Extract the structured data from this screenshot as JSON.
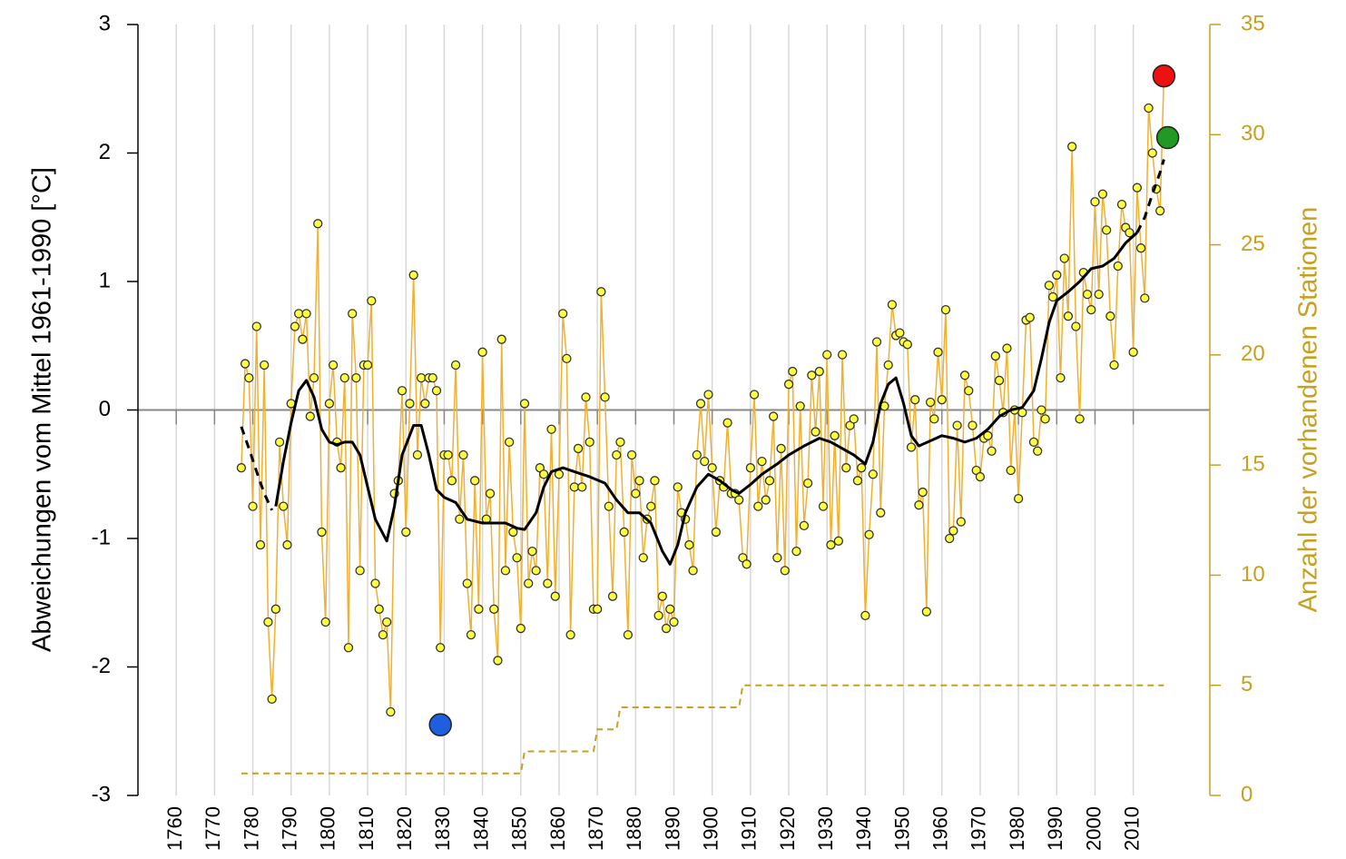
{
  "chart_data": {
    "type": "line",
    "ylabel": "Abweichungen vom Mittel 1961-1990 [°C]",
    "y2label": "Anzahl der vorhandenen Stationen",
    "xlim": [
      1750,
      2030
    ],
    "xticks": [
      1760,
      1770,
      1780,
      1790,
      1800,
      1810,
      1820,
      1830,
      1840,
      1850,
      1860,
      1870,
      1880,
      1890,
      1900,
      1910,
      1920,
      1930,
      1940,
      1950,
      1960,
      1970,
      1980,
      1990,
      2000,
      2010
    ],
    "ylim": [
      -3,
      3
    ],
    "yticks": [
      -3,
      -2,
      -1,
      0,
      1,
      2,
      3
    ],
    "y2lim": [
      0,
      35
    ],
    "y2ticks": [
      0,
      5,
      10,
      15,
      20,
      25,
      30,
      35
    ],
    "y2color": "#c8a020",
    "grid": "x",
    "zero_line": true,
    "series": [
      {
        "axis": "y2",
        "color": "#c8a020",
        "linestyle": "dashed",
        "linewidth": 2,
        "x": [
          1777,
          1850,
          1851,
          1869,
          1870,
          1875,
          1876,
          1907,
          1908,
          2018
        ],
        "values": [
          1,
          1,
          2,
          2,
          3,
          3,
          4,
          4,
          5,
          5
        ]
      },
      {
        "color": "#f0b030",
        "linestyle": "solid",
        "linewidth": 1.5,
        "marker": true,
        "marker_color": "#ffff40",
        "x": [
          1777,
          1778,
          1779,
          1780,
          1781,
          1782,
          1783,
          1784,
          1785,
          1786,
          1787,
          1788,
          1789,
          1790,
          1791,
          1792,
          1793,
          1794,
          1795,
          1796,
          1797,
          1798,
          1799,
          1800,
          1801,
          1802,
          1803,
          1804,
          1805,
          1806,
          1807,
          1808,
          1809,
          1810,
          1811,
          1812,
          1813,
          1814,
          1815,
          1816,
          1817,
          1818,
          1819,
          1820,
          1821,
          1822,
          1823,
          1824,
          1825,
          1826,
          1827,
          1828,
          1829,
          1830,
          1831,
          1832,
          1833,
          1834,
          1835,
          1836,
          1837,
          1838,
          1839,
          1840,
          1841,
          1842,
          1843,
          1844,
          1845,
          1846,
          1847,
          1848,
          1849,
          1850,
          1851,
          1852,
          1853,
          1854,
          1855,
          1856,
          1857,
          1858,
          1859,
          1860,
          1861,
          1862,
          1863,
          1864,
          1865,
          1866,
          1867,
          1868,
          1869,
          1870,
          1871,
          1872,
          1873,
          1874,
          1875,
          1876,
          1877,
          1878,
          1879,
          1880,
          1881,
          1882,
          1883,
          1884,
          1885,
          1886,
          1887,
          1888,
          1889,
          1890,
          1891,
          1892,
          1893,
          1894,
          1895,
          1896,
          1897,
          1898,
          1899,
          1900,
          1901,
          1902,
          1903,
          1904,
          1905,
          1906,
          1907,
          1908,
          1909,
          1910,
          1911,
          1912,
          1913,
          1914,
          1915,
          1916,
          1917,
          1918,
          1919,
          1920,
          1921,
          1922,
          1923,
          1924,
          1925,
          1926,
          1927,
          1928,
          1929,
          1930,
          1931,
          1932,
          1933,
          1934,
          1935,
          1936,
          1937,
          1938,
          1939,
          1940,
          1941,
          1942,
          1943,
          1944,
          1945,
          1946,
          1947,
          1948,
          1949,
          1950,
          1951,
          1952,
          1953,
          1954,
          1955,
          1956,
          1957,
          1958,
          1959,
          1960,
          1961,
          1962,
          1963,
          1964,
          1965,
          1966,
          1967,
          1968,
          1969,
          1970,
          1971,
          1972,
          1973,
          1974,
          1975,
          1976,
          1977,
          1978,
          1979,
          1980,
          1981,
          1982,
          1983,
          1984,
          1985,
          1986,
          1987,
          1988,
          1989,
          1990,
          1991,
          1992,
          1993,
          1994,
          1995,
          1996,
          1997,
          1998,
          1999,
          2000,
          2001,
          2002,
          2003,
          2004,
          2005,
          2006,
          2007,
          2008,
          2009,
          2010,
          2011,
          2012,
          2013,
          2014,
          2015,
          2016,
          2017,
          2018
        ],
        "values": [
          -0.45,
          0.36,
          0.25,
          -0.75,
          0.65,
          -1.05,
          0.35,
          -1.65,
          -2.25,
          -1.55,
          -0.25,
          -0.75,
          -1.05,
          0.05,
          0.65,
          0.75,
          0.55,
          0.75,
          -0.05,
          0.25,
          1.45,
          -0.95,
          -1.65,
          0.05,
          0.35,
          -0.25,
          -0.45,
          0.25,
          -1.85,
          0.75,
          0.25,
          -1.25,
          0.35,
          0.35,
          0.85,
          -1.35,
          -1.55,
          -1.75,
          -1.65,
          -2.35,
          -0.65,
          -0.55,
          0.15,
          -0.95,
          0.05,
          1.05,
          -0.35,
          0.25,
          0.05,
          0.25,
          0.25,
          0.15,
          -1.85,
          -0.35,
          -0.35,
          -0.55,
          0.35,
          -0.85,
          -0.35,
          -1.35,
          -1.75,
          -0.55,
          -1.55,
          0.45,
          -0.85,
          -0.65,
          -1.55,
          -1.95,
          0.55,
          -1.25,
          -0.25,
          -0.95,
          -1.15,
          -1.7,
          0.05,
          -1.35,
          -1.1,
          -1.25,
          -0.45,
          -0.5,
          -1.35,
          -0.15,
          -1.45,
          -0.5,
          0.75,
          0.4,
          -1.75,
          -0.6,
          -0.3,
          -0.6,
          0.1,
          -0.25,
          -1.55,
          -1.55,
          0.92,
          0.1,
          -0.75,
          -1.45,
          -0.35,
          -0.25,
          -0.95,
          -1.75,
          -0.35,
          -0.65,
          -0.55,
          -1.15,
          -0.85,
          -0.75,
          -0.55,
          -1.6,
          -1.45,
          -1.7,
          -1.55,
          -1.65,
          -0.6,
          -0.8,
          -0.85,
          -1.05,
          -1.25,
          -0.35,
          0.05,
          -0.4,
          0.12,
          -0.45,
          -0.95,
          -0.55,
          -0.6,
          -0.1,
          -0.65,
          -0.65,
          -0.7,
          -1.15,
          -1.2,
          -0.45,
          0.12,
          -0.75,
          -0.4,
          -0.7,
          -0.55,
          -0.05,
          -1.15,
          -0.3,
          -1.25,
          0.2,
          0.3,
          -1.1,
          0.03,
          -0.9,
          -0.57,
          0.27,
          -0.17,
          0.3,
          -0.75,
          0.43,
          -1.05,
          -0.2,
          -1.02,
          0.43,
          -0.45,
          -0.12,
          -0.07,
          -0.55,
          -0.45,
          -1.6,
          -0.97,
          -0.5,
          0.53,
          -0.8,
          0.03,
          0.35,
          0.82,
          0.58,
          0.6,
          0.53,
          0.51,
          -0.29,
          0.08,
          -0.74,
          -0.64,
          -1.57,
          0.06,
          -0.07,
          0.45,
          0.08,
          0.78,
          -1.0,
          -0.94,
          -0.12,
          -0.87,
          0.27,
          0.15,
          -0.12,
          -0.47,
          -0.52,
          -0.22,
          -0.2,
          -0.32,
          0.42,
          0.23,
          -0.02,
          0.48,
          -0.47,
          0.0,
          -0.69,
          -0.02,
          0.7,
          0.72,
          -0.25,
          -0.32,
          0.0,
          -0.07,
          0.97,
          0.88,
          1.05,
          0.25,
          1.18,
          0.73,
          2.05,
          0.65,
          -0.07,
          1.07,
          0.9,
          0.78,
          1.62,
          0.9,
          1.68,
          1.4,
          0.73,
          0.35,
          1.12,
          1.6,
          1.42,
          1.38,
          0.45,
          1.73,
          1.26,
          0.87,
          2.35,
          2.0,
          1.72,
          1.55,
          2.6
        ]
      },
      {
        "color": "#000000",
        "linestyle": "dashed",
        "linewidth": 3,
        "x": [
          1777,
          1779,
          1781,
          1783,
          1785
        ],
        "values": [
          -0.13,
          -0.3,
          -0.48,
          -0.65,
          -0.78
        ]
      },
      {
        "color": "#000000",
        "linestyle": "solid",
        "linewidth": 3,
        "x": [
          1786,
          1788,
          1790,
          1792,
          1794,
          1796,
          1798,
          1800,
          1802,
          1804,
          1806,
          1808,
          1810,
          1812,
          1815,
          1817,
          1819,
          1822,
          1824,
          1826,
          1828,
          1830,
          1833,
          1836,
          1840,
          1843,
          1846,
          1849,
          1851,
          1854,
          1856,
          1858,
          1861,
          1864,
          1868,
          1872,
          1875,
          1878,
          1881,
          1884,
          1887,
          1889,
          1891,
          1893,
          1896,
          1899,
          1902,
          1905,
          1907,
          1910,
          1913,
          1917,
          1920,
          1924,
          1928,
          1931,
          1934,
          1937,
          1940,
          1942,
          1944,
          1946,
          1948,
          1950,
          1952,
          1954,
          1957,
          1960,
          1963,
          1966,
          1969,
          1972,
          1975,
          1978,
          1981,
          1984,
          1986,
          1988,
          1990,
          1993,
          1996,
          1999,
          2002,
          2005,
          2008,
          2011
        ],
        "values": [
          -0.75,
          -0.4,
          -0.1,
          0.15,
          0.23,
          0.1,
          -0.15,
          -0.25,
          -0.27,
          -0.25,
          -0.25,
          -0.35,
          -0.6,
          -0.85,
          -1.02,
          -0.75,
          -0.35,
          -0.12,
          -0.12,
          -0.35,
          -0.62,
          -0.68,
          -0.72,
          -0.85,
          -0.88,
          -0.88,
          -0.88,
          -0.92,
          -0.93,
          -0.8,
          -0.6,
          -0.48,
          -0.45,
          -0.48,
          -0.52,
          -0.57,
          -0.7,
          -0.8,
          -0.8,
          -0.88,
          -1.1,
          -1.2,
          -1.05,
          -0.8,
          -0.6,
          -0.5,
          -0.55,
          -0.62,
          -0.65,
          -0.58,
          -0.5,
          -0.42,
          -0.35,
          -0.28,
          -0.22,
          -0.25,
          -0.3,
          -0.35,
          -0.42,
          -0.25,
          0.05,
          0.2,
          0.25,
          0.05,
          -0.2,
          -0.28,
          -0.24,
          -0.2,
          -0.22,
          -0.25,
          -0.22,
          -0.15,
          -0.05,
          0.0,
          0.02,
          0.15,
          0.4,
          0.68,
          0.85,
          0.92,
          1.0,
          1.1,
          1.12,
          1.18,
          1.3,
          1.38
        ]
      },
      {
        "color": "#000000",
        "linestyle": "dashed",
        "linewidth": 3,
        "x": [
          2011,
          2013,
          2015,
          2017,
          2018
        ],
        "values": [
          1.38,
          1.5,
          1.68,
          1.85,
          1.95
        ]
      },
      {
        "type": "scatter",
        "color": "#1e5fe0",
        "x": [
          1829
        ],
        "values": [
          -2.45
        ]
      },
      {
        "type": "scatter",
        "color": "#ee1111",
        "x": [
          2018
        ],
        "values": [
          2.6
        ]
      },
      {
        "type": "scatter",
        "color": "#229922",
        "x": [
          2019
        ],
        "values": [
          2.12
        ]
      }
    ]
  }
}
